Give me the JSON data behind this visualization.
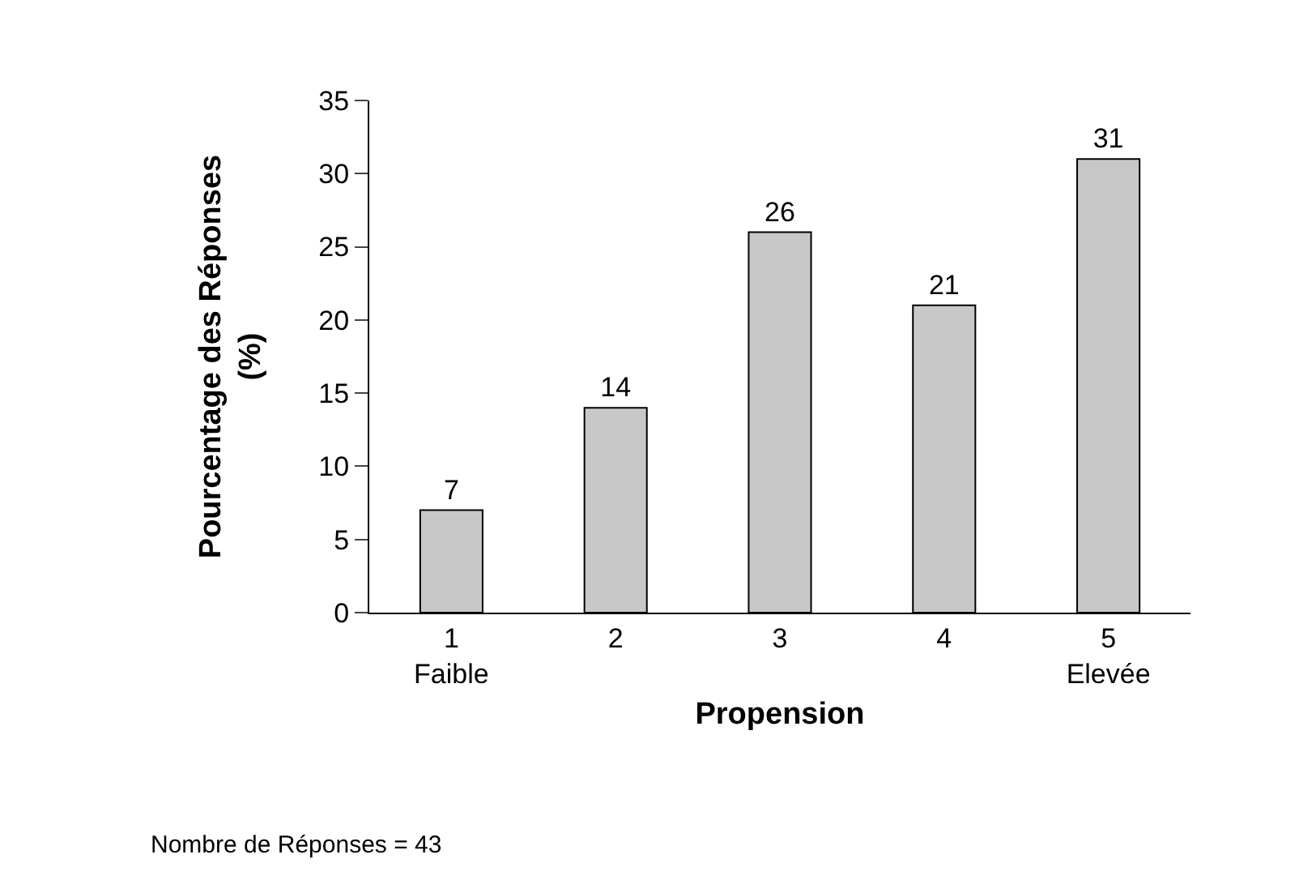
{
  "chart_data": {
    "type": "bar",
    "categories": [
      "1\nFaible",
      "2",
      "3",
      "4",
      "5\nElevée"
    ],
    "values": [
      7,
      14,
      26,
      21,
      31
    ],
    "color": "#c8c8c8",
    "xlabel": "Propension",
    "ylabel": "Pourcentage des Réponses\n(%)",
    "ylim": [
      0,
      35
    ],
    "yticks": [
      0,
      5,
      10,
      15,
      20,
      25,
      30,
      35
    ],
    "grid": false,
    "data_labels": true,
    "annotations": [
      "Nombre de Réponses = 43"
    ]
  }
}
